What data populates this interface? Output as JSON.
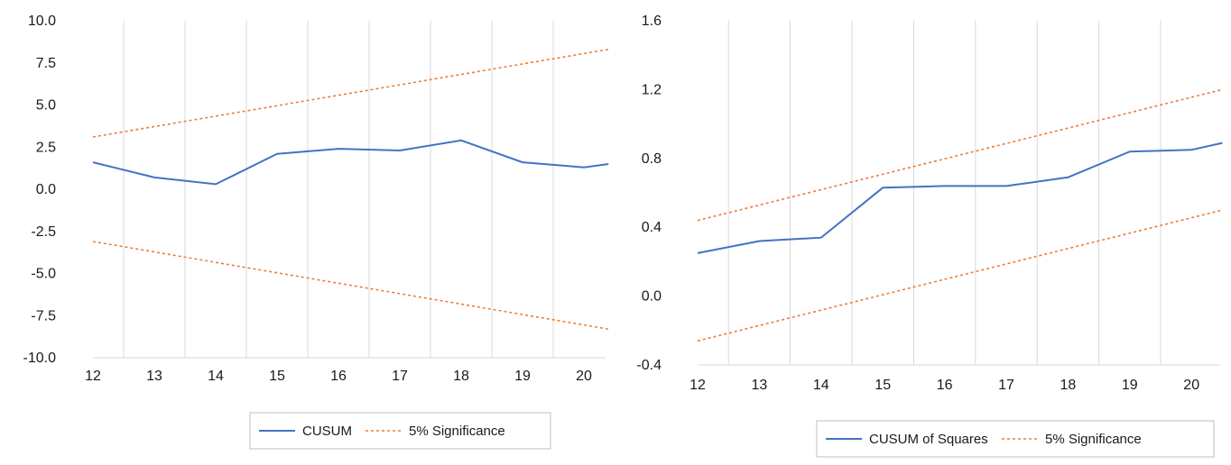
{
  "chart_data": [
    {
      "type": "line",
      "x": [
        12,
        13,
        14,
        15,
        16,
        17,
        18,
        19,
        20
      ],
      "xlim": [
        12,
        20.4
      ],
      "ylim": [
        -10.0,
        10.0
      ],
      "yticks": [
        "10.0",
        "7.5",
        "5.0",
        "2.5",
        "0.0",
        "-2.5",
        "-5.0",
        "-7.5",
        "-10.0"
      ],
      "ytick_values": [
        10.0,
        7.5,
        5.0,
        2.5,
        0.0,
        -2.5,
        -5.0,
        -7.5,
        -10.0
      ],
      "xticks": [
        "12",
        "13",
        "14",
        "15",
        "16",
        "17",
        "18",
        "19",
        "20"
      ],
      "grid": "vertical",
      "legend_position": "bottom",
      "series": [
        {
          "name": "CUSUM",
          "style": "solid",
          "color": "#4472c4",
          "x": [
            12,
            13,
            14,
            15,
            16,
            17,
            18,
            19,
            20,
            20.4
          ],
          "values": [
            1.6,
            0.7,
            0.3,
            2.1,
            2.4,
            2.3,
            2.9,
            1.6,
            1.3,
            1.5
          ]
        },
        {
          "name": "5% Significance",
          "style": "dashed",
          "color": "#ed7d31",
          "x": [
            12,
            20.4
          ],
          "values": [
            3.1,
            8.3
          ]
        },
        {
          "name": "",
          "style": "dashed",
          "color": "#ed7d31",
          "x": [
            12,
            20.4
          ],
          "values": [
            -3.1,
            -8.3
          ]
        }
      ],
      "legend": [
        "CUSUM",
        "5% Significance"
      ]
    },
    {
      "type": "line",
      "x": [
        12,
        13,
        14,
        15,
        16,
        17,
        18,
        19,
        20
      ],
      "xlim": [
        12,
        20.5
      ],
      "ylim": [
        -0.4,
        1.6
      ],
      "yticks": [
        "1.6",
        "1.2",
        "0.8",
        "0.4",
        "0.0",
        "-0.4"
      ],
      "ytick_values": [
        1.6,
        1.2,
        0.8,
        0.4,
        0.0,
        -0.4
      ],
      "xticks": [
        "12",
        "13",
        "14",
        "15",
        "16",
        "17",
        "18",
        "19",
        "20"
      ],
      "grid": "vertical",
      "legend_position": "bottom",
      "series": [
        {
          "name": "CUSUM of Squares",
          "style": "solid",
          "color": "#4472c4",
          "x": [
            12,
            13,
            14,
            15,
            16,
            17,
            18,
            19,
            20,
            20.5
          ],
          "values": [
            0.25,
            0.32,
            0.34,
            0.63,
            0.64,
            0.64,
            0.69,
            0.84,
            0.85,
            0.89
          ]
        },
        {
          "name": "5% Significance",
          "style": "dashed",
          "color": "#ed7d31",
          "x": [
            12,
            20.5
          ],
          "values": [
            0.44,
            1.2
          ]
        },
        {
          "name": "",
          "style": "dashed",
          "color": "#ed7d31",
          "x": [
            12,
            20.5
          ],
          "values": [
            -0.26,
            0.5
          ]
        }
      ],
      "legend": [
        "CUSUM of Squares",
        "5% Significance"
      ]
    }
  ]
}
